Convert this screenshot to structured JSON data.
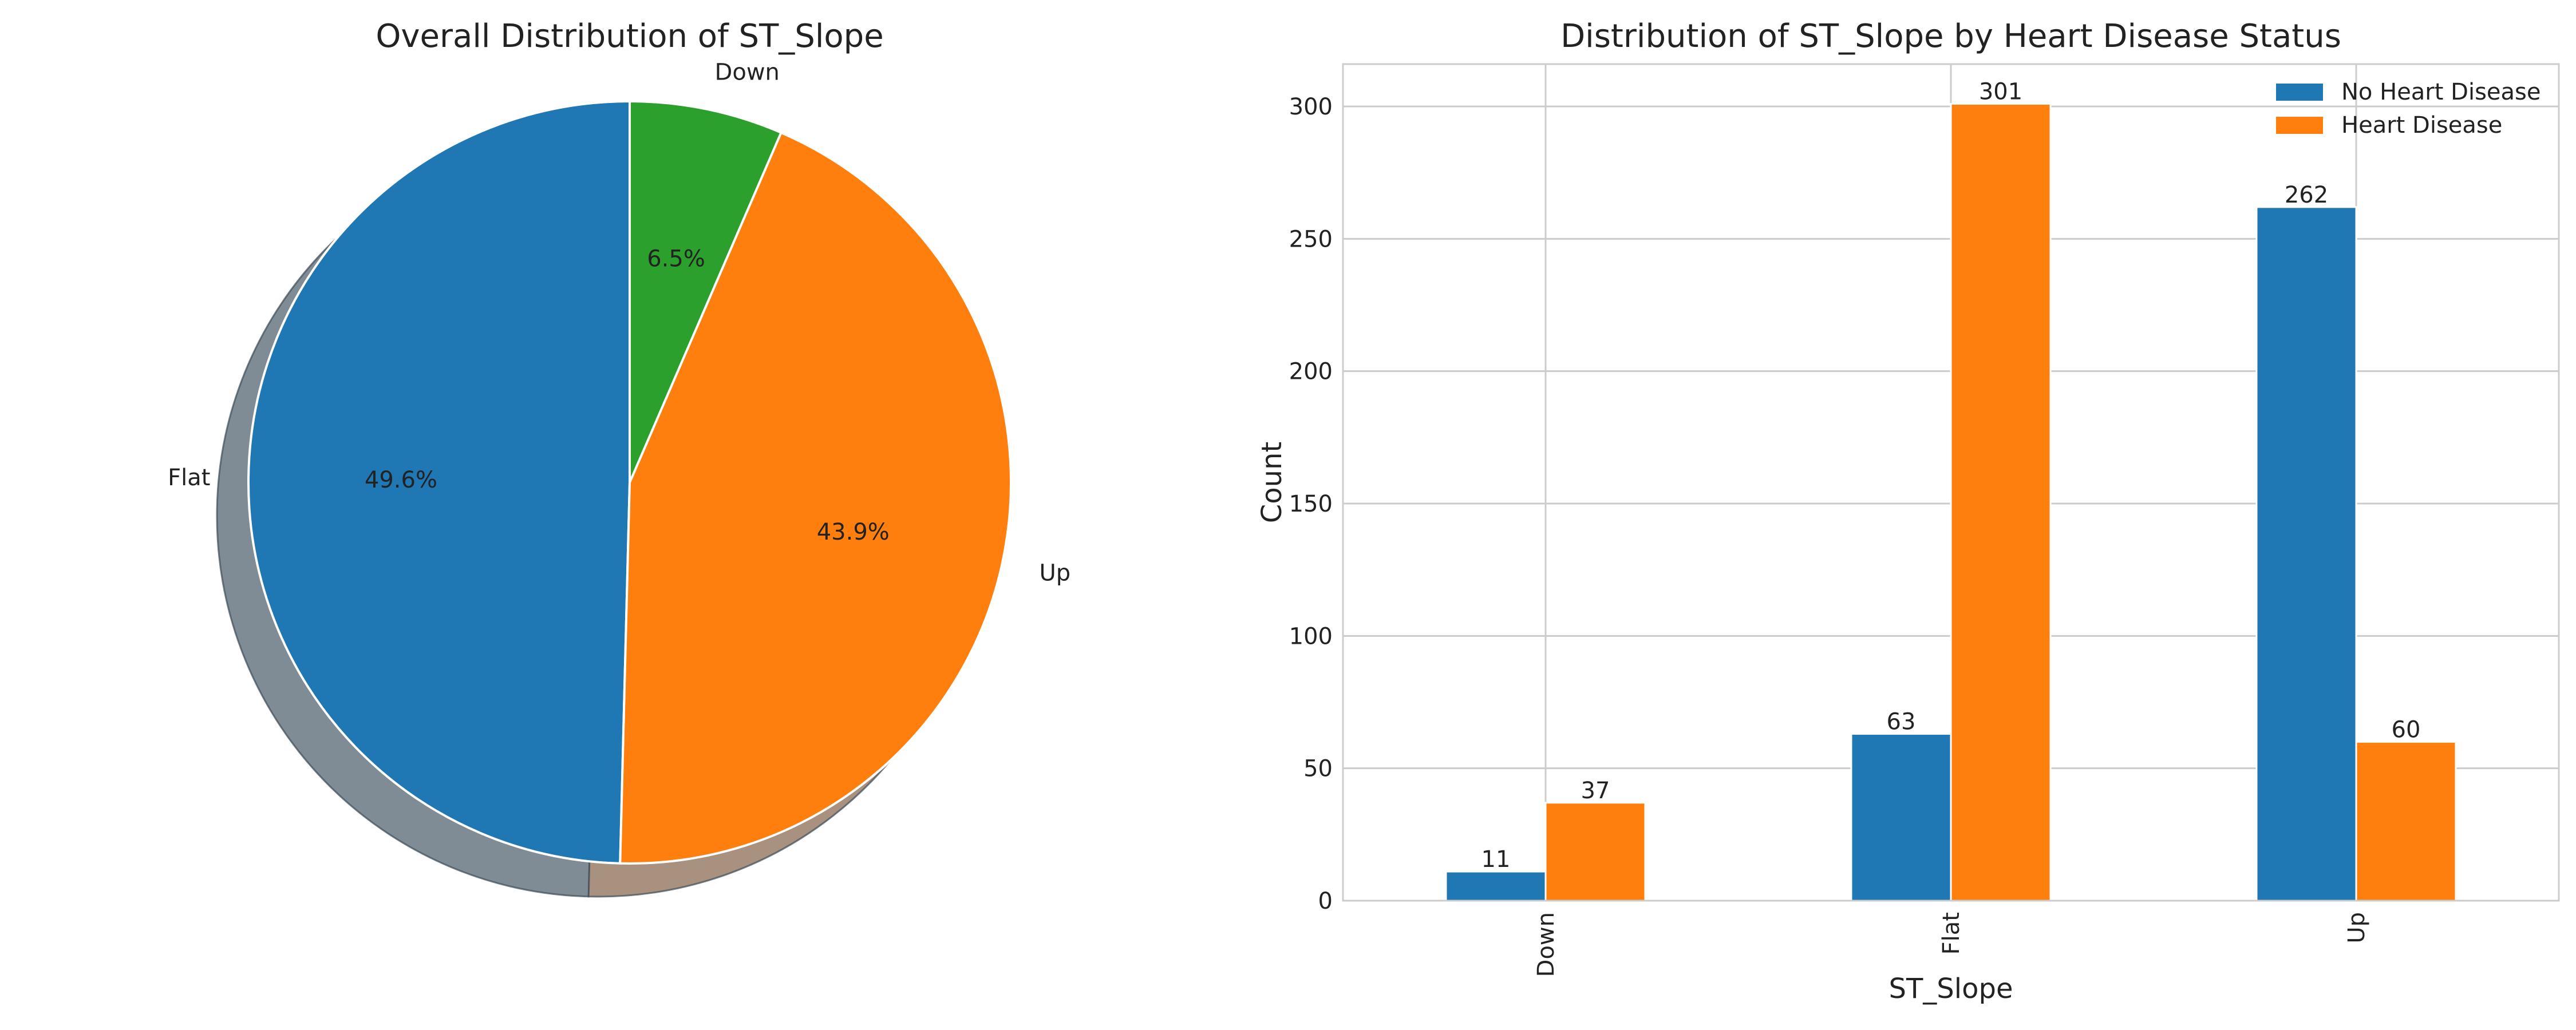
{
  "chart_data": [
    {
      "type": "pie",
      "title": "Overall Distribution of ST_Slope",
      "labels": [
        "Flat",
        "Up",
        "Down"
      ],
      "values": [
        49.6,
        43.9,
        6.5
      ],
      "pct_labels": [
        "49.6%",
        "43.9%",
        "6.5%"
      ],
      "colors": [
        "#1f77b4",
        "#ff7f0e",
        "#2ca02c"
      ],
      "start_angle_deg": 90,
      "direction": "counterclockwise",
      "shadow": true
    },
    {
      "type": "bar",
      "title": "Distribution of ST_Slope by Heart Disease Status",
      "categories": [
        "Down",
        "Flat",
        "Up"
      ],
      "series": [
        {
          "name": "No Heart Disease",
          "values": [
            11,
            63,
            262
          ],
          "color": "#1f77b4"
        },
        {
          "name": "Heart Disease",
          "values": [
            37,
            301,
            60
          ],
          "color": "#ff7f0e"
        }
      ],
      "xlabel": "ST_Slope",
      "ylabel": "Count",
      "ylim": [
        0,
        316
      ],
      "yticks": [
        0,
        50,
        100,
        150,
        200,
        250,
        300
      ],
      "grid": true,
      "legend_position": "top-right",
      "data_labels": true
    }
  ]
}
